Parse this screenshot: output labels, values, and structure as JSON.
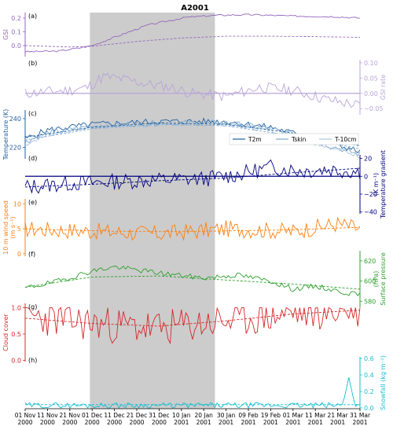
{
  "chart_data": {
    "type": "line",
    "title": "A2001",
    "shaded_period": {
      "start": "2000-11-30",
      "end": "2001-01-25",
      "color": "#bbbbbb"
    },
    "x_axis": {
      "start": "2000-11-01",
      "end": "2001-03-31",
      "tick_labels": [
        [
          "01 Nov",
          "2000"
        ],
        [
          "11 Nov",
          "2000"
        ],
        [
          "21 Nov",
          "2000"
        ],
        [
          "01 Dec",
          "2000"
        ],
        [
          "11 Dec",
          "2000"
        ],
        [
          "21 Dec",
          "2000"
        ],
        [
          "31 Dec",
          "2000"
        ],
        [
          "10 Jan",
          "2001"
        ],
        [
          "20 Jan",
          "2001"
        ],
        [
          "30 Jan",
          "2001"
        ],
        [
          "09 Feb",
          "2001"
        ],
        [
          "19 Feb",
          "2001"
        ],
        [
          "01 Mar",
          "2001"
        ],
        [
          "11 Mar",
          "2001"
        ],
        [
          "21 Mar",
          "2001"
        ],
        [
          "31 Mar",
          "2001"
        ]
      ]
    },
    "panels": [
      {
        "letter": "(a)",
        "ylabel": "GSI",
        "unit": "",
        "axis_side": "left",
        "color": "#9467bd",
        "ylim": [
          -0.08,
          0.24
        ],
        "ticks": [
          "0.0",
          "0.1",
          "0.2"
        ],
        "tick_values": [
          0,
          0.1,
          0.2
        ],
        "series": [
          {
            "style": "solid",
            "knots": [
              [
                0,
                -0.045
              ],
              [
                15,
                -0.04
              ],
              [
                25,
                -0.015
              ],
              [
                30,
                0.0
              ],
              [
                40,
                0.06
              ],
              [
                55,
                0.15
              ],
              [
                72,
                0.205
              ],
              [
                85,
                0.22
              ],
              [
                100,
                0.225
              ],
              [
                120,
                0.215
              ],
              [
                140,
                0.21
              ],
              [
                150,
                0.2
              ]
            ],
            "noise": 0.006,
            "seed": 3
          },
          {
            "style": "dashed",
            "knots": [
              [
                0,
                0.0
              ],
              [
                20,
                -0.01
              ],
              [
                30,
                -0.005
              ],
              [
                50,
                0.03
              ],
              [
                70,
                0.055
              ],
              [
                90,
                0.068
              ],
              [
                110,
                0.068
              ],
              [
                130,
                0.065
              ],
              [
                150,
                0.06
              ]
            ],
            "noise": 0,
            "seed": 0
          }
        ]
      },
      {
        "letter": "(b)",
        "ylabel": "GSI rate",
        "unit": "",
        "axis_side": "right",
        "color": "#b8a4d8",
        "ylim": [
          -0.07,
          0.11
        ],
        "ticks": [
          "−0.05",
          "0.00",
          "0.05",
          "0.10"
        ],
        "tick_values": [
          -0.05,
          0,
          0.05,
          0.1
        ],
        "zero_line": true,
        "series": [
          {
            "style": "solid",
            "knots": [
              [
                0,
                0.0
              ],
              [
                20,
                0.01
              ],
              [
                28,
                0.02
              ],
              [
                35,
                0.055
              ],
              [
                45,
                0.045
              ],
              [
                55,
                0.03
              ],
              [
                65,
                0.02
              ],
              [
                75,
                0.0
              ],
              [
                90,
                -0.01
              ],
              [
                105,
                0.02
              ],
              [
                120,
                0.01
              ],
              [
                135,
                -0.02
              ],
              [
                150,
                -0.04
              ]
            ],
            "noise": 0.018,
            "seed": 11
          }
        ]
      },
      {
        "letter": "(c)",
        "ylabel": "Temperature (K)",
        "unit": "",
        "axis_side": "left",
        "color": "#1f5f9e",
        "ylim": [
          212,
          246
        ],
        "ticks": [
          "220",
          "240"
        ],
        "tick_values": [
          220,
          240
        ],
        "legend": {
          "placement": "top-right",
          "entries": [
            {
              "label": "T2m",
              "color": "#1f5f9e"
            },
            {
              "label": "Tskin",
              "color": "#7fa8cf"
            },
            {
              "label": "T-10cm",
              "color": "#a9c4de"
            }
          ]
        },
        "series": [
          {
            "style": "solid",
            "knots": [
              [
                0,
                226
              ],
              [
                10,
                232
              ],
              [
                30,
                236
              ],
              [
                60,
                238
              ],
              [
                90,
                238
              ],
              [
                110,
                234
              ],
              [
                130,
                226
              ],
              [
                150,
                217
              ]
            ],
            "noise": 2.2,
            "seed": 5,
            "color": "#1f5f9e"
          },
          {
            "style": "solid",
            "knots": [
              [
                0,
                224
              ],
              [
                10,
                230
              ],
              [
                30,
                235
              ],
              [
                60,
                237
              ],
              [
                90,
                237
              ],
              [
                110,
                233
              ],
              [
                130,
                224
              ],
              [
                150,
                215
              ]
            ],
            "noise": 2.0,
            "seed": 6,
            "color": "#7fa8cf"
          },
          {
            "style": "solid",
            "knots": [
              [
                0,
                222
              ],
              [
                10,
                229
              ],
              [
                30,
                234
              ],
              [
                60,
                236
              ],
              [
                90,
                236
              ],
              [
                110,
                232
              ],
              [
                130,
                223
              ],
              [
                150,
                214
              ]
            ],
            "noise": 1.6,
            "seed": 7,
            "color": "#a9c4de"
          },
          {
            "style": "dashed",
            "knots": [
              [
                0,
                227
              ],
              [
                30,
                234
              ],
              [
                60,
                237
              ],
              [
                90,
                236
              ],
              [
                120,
                230
              ],
              [
                150,
                221
              ]
            ],
            "noise": 0,
            "seed": 0,
            "color": "#1f5f9e"
          },
          {
            "style": "dashed",
            "knots": [
              [
                0,
                225
              ],
              [
                30,
                233
              ],
              [
                60,
                236
              ],
              [
                90,
                235
              ],
              [
                120,
                228
              ],
              [
                150,
                219
              ]
            ],
            "noise": 0,
            "seed": 0,
            "color": "#7fa8cf"
          }
        ]
      },
      {
        "letter": "(d)",
        "ylabel": "Temperature gradient",
        "unit": "(K m⁻¹)",
        "axis_side": "right",
        "color": "#000080",
        "ylim": [
          -42,
          24
        ],
        "ticks": [
          "−40",
          "−20",
          "0",
          "20"
        ],
        "tick_values": [
          -40,
          -20,
          0,
          20
        ],
        "zero_line": true,
        "series": [
          {
            "style": "solid",
            "knots": [
              [
                0,
                -12
              ],
              [
                20,
                -8
              ],
              [
                40,
                -6
              ],
              [
                60,
                -4
              ],
              [
                80,
                -3
              ],
              [
                95,
                2
              ],
              [
                110,
                10
              ],
              [
                125,
                6
              ],
              [
                135,
                8
              ],
              [
                150,
                5
              ]
            ],
            "noise": 9,
            "seed": 13
          },
          {
            "style": "dashed",
            "knots": [
              [
                0,
                -12
              ],
              [
                30,
                -9
              ],
              [
                60,
                -5
              ],
              [
                90,
                -2
              ],
              [
                120,
                4
              ],
              [
                150,
                9
              ]
            ],
            "noise": 0,
            "seed": 0
          }
        ]
      },
      {
        "letter": "(e)",
        "ylabel": "10 m wind speed",
        "unit": "(m s⁻¹)",
        "axis_side": "left",
        "color": "#ff7f0e",
        "ylim": [
          -0.5,
          11
        ],
        "ticks": [
          "0",
          "5",
          "10"
        ],
        "tick_values": [
          0,
          5,
          10
        ],
        "series": [
          {
            "style": "solid",
            "knots": [
              [
                0,
                5
              ],
              [
                30,
                4.5
              ],
              [
                60,
                4
              ],
              [
                90,
                5
              ],
              [
                120,
                4.5
              ],
              [
                140,
                6
              ],
              [
                150,
                5
              ]
            ],
            "noise": 1.7,
            "seed": 17
          },
          {
            "style": "dashed",
            "knots": [
              [
                0,
                5
              ],
              [
                40,
                4.5
              ],
              [
                80,
                4.5
              ],
              [
                120,
                4.8
              ],
              [
                150,
                5.3
              ]
            ],
            "noise": 0,
            "seed": 0
          }
        ]
      },
      {
        "letter": "(f)",
        "ylabel": "Surface pressure",
        "unit": "(hPa)",
        "axis_side": "right",
        "color": "#2ca02c",
        "ylim": [
          574,
          630
        ],
        "ticks": [
          "580",
          "600",
          "620"
        ],
        "tick_values": [
          580,
          600,
          620
        ],
        "series": [
          {
            "style": "solid",
            "knots": [
              [
                0,
                593
              ],
              [
                15,
                600
              ],
              [
                30,
                610
              ],
              [
                40,
                614
              ],
              [
                60,
                608
              ],
              [
                80,
                603
              ],
              [
                95,
                606
              ],
              [
                110,
                600
              ],
              [
                120,
                592
              ],
              [
                130,
                595
              ],
              [
                140,
                590
              ],
              [
                150,
                586
              ]
            ],
            "noise": 2.6,
            "seed": 19
          },
          {
            "style": "dashed",
            "knots": [
              [
                0,
                594
              ],
              [
                30,
                604
              ],
              [
                60,
                605
              ],
              [
                90,
                601
              ],
              [
                120,
                597
              ],
              [
                150,
                592
              ]
            ],
            "noise": 0,
            "seed": 0
          }
        ]
      },
      {
        "letter": "(g)",
        "ylabel": "Cloud cover",
        "unit": "",
        "axis_side": "left",
        "color": "#d62728",
        "ylim": [
          -0.02,
          1.08
        ],
        "ticks": [
          "0.0",
          "0.5",
          "1.0"
        ],
        "tick_values": [
          0,
          0.5,
          1
        ],
        "series": [
          {
            "style": "solid",
            "knots": [
              [
                0,
                0.85
              ],
              [
                30,
                0.7
              ],
              [
                60,
                0.6
              ],
              [
                90,
                0.75
              ],
              [
                120,
                0.9
              ],
              [
                150,
                0.95
              ]
            ],
            "noise": 0.35,
            "seed": 23,
            "clip": [
              0,
              1
            ]
          },
          {
            "style": "dashed",
            "knots": [
              [
                0,
                0.8
              ],
              [
                30,
                0.7
              ],
              [
                60,
                0.65
              ],
              [
                90,
                0.75
              ],
              [
                120,
                0.88
              ],
              [
                150,
                0.95
              ]
            ],
            "noise": 0,
            "seed": 0
          }
        ]
      },
      {
        "letter": "(h)",
        "ylabel": "Snowfall",
        "unit": "(kg m⁻²)",
        "axis_side": "right",
        "color": "#17becf",
        "ylim": [
          -0.01,
          0.62
        ],
        "ticks": [
          "0.0",
          "0.2",
          "0.4",
          "0.6"
        ],
        "tick_values": [
          0,
          0.2,
          0.4,
          0.6
        ],
        "series": [
          {
            "style": "solid",
            "knots": [
              [
                0,
                0.03
              ],
              [
                150,
                0.03
              ]
            ],
            "noise": 0.035,
            "seed": 29,
            "clip": [
              0,
              1
            ],
            "spike": [
              145,
              0.37
            ]
          },
          {
            "style": "dashed",
            "knots": [
              [
                0,
                0.04
              ],
              [
                150,
                0.04
              ]
            ],
            "noise": 0,
            "seed": 0
          }
        ]
      }
    ]
  }
}
